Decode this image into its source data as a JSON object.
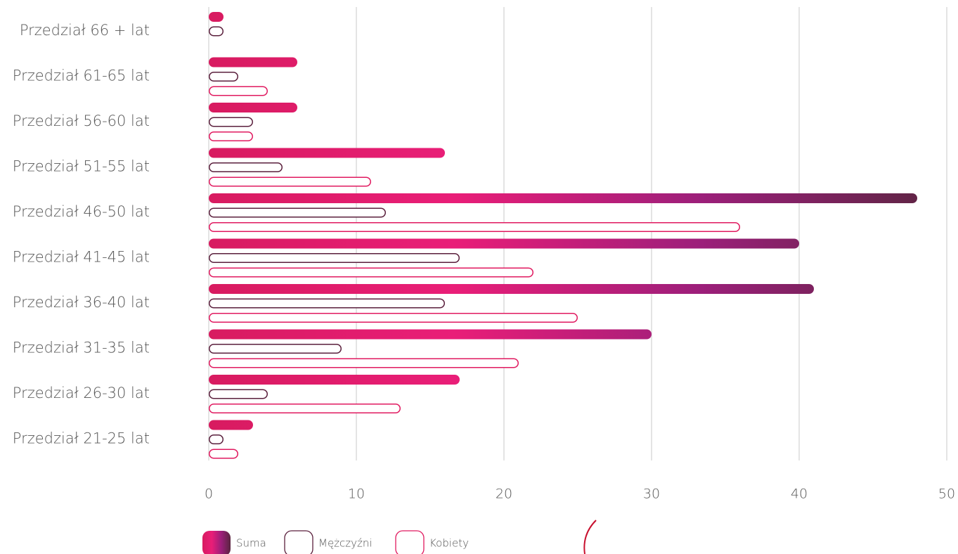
{
  "chart_data": {
    "type": "barh",
    "categories": [
      "Przedział 66 + lat",
      "Przedział 61-65 lat",
      "Przedział 56-60 lat",
      "Przedział 51-55 lat",
      "Przedział 46-50 lat",
      "Przedział 41-45 lat",
      "Przedział 36-40 lat",
      "Przedział 31-35 lat",
      "Przedział 26-30 lat",
      "Przedział 21-25 lat"
    ],
    "series": [
      {
        "name": "Suma",
        "color": "#d81b60",
        "gradient": [
          "#d81b60",
          "#e91e78",
          "#9c1f7a",
          "#5a2540"
        ],
        "values": [
          1,
          6,
          6,
          16,
          48,
          40,
          41,
          30,
          17,
          3
        ]
      },
      {
        "name": "Mężczyźni",
        "color": "#5a1f3c",
        "values": [
          1,
          2,
          3,
          5,
          12,
          17,
          16,
          9,
          4,
          1
        ]
      },
      {
        "name": "Kobiety",
        "color": "#e0195f",
        "values": [
          0,
          4,
          3,
          11,
          36,
          22,
          25,
          21,
          13,
          2
        ]
      }
    ],
    "xlim": [
      0,
      50
    ],
    "xticks": [
      0,
      10,
      20,
      30,
      40,
      50
    ],
    "grid": true
  }
}
